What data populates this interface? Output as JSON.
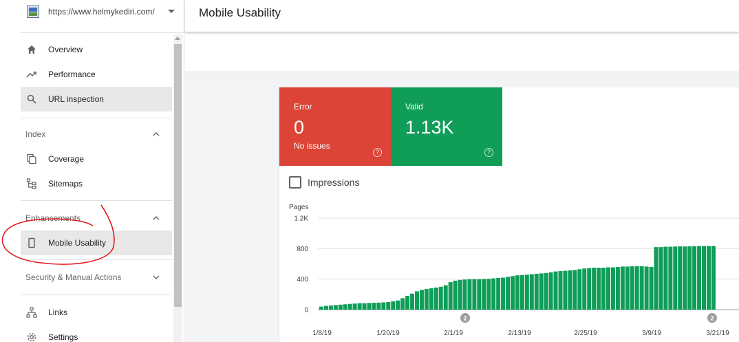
{
  "property": {
    "url": "https://www.helmykediri.com/"
  },
  "nav": {
    "overview": "Overview",
    "performance": "Performance",
    "url_inspection": "URL inspection",
    "index_header": "Index",
    "coverage": "Coverage",
    "sitemaps": "Sitemaps",
    "enhancements_header": "Enhancements",
    "mobile_usability": "Mobile Usability",
    "security_header": "Security & Manual Actions",
    "links": "Links",
    "settings": "Settings"
  },
  "header": {
    "title": "Mobile Usability"
  },
  "summary": {
    "error": {
      "label": "Error",
      "value": "0",
      "sub": "No issues",
      "color": "#db4437"
    },
    "valid": {
      "label": "Valid",
      "value": "1.13K",
      "color": "#0f9d58"
    }
  },
  "impressions_label": "Impressions",
  "chart_data": {
    "type": "bar",
    "ylabel": "Pages",
    "ylim": [
      0,
      1200
    ],
    "y_ticks": [
      {
        "value": 0,
        "label": "0"
      },
      {
        "value": 400,
        "label": "400"
      },
      {
        "value": 800,
        "label": "800"
      },
      {
        "value": 1200,
        "label": "1.2K"
      }
    ],
    "x_tick_labels": [
      "1/8/19",
      "1/20/19",
      "2/1/19",
      "2/13/19",
      "2/25/19",
      "3/9/19",
      "3/21/19"
    ],
    "annotations": [
      {
        "label": "2",
        "near": "2/1/19"
      },
      {
        "label": "2",
        "near": "3/21/19"
      }
    ],
    "bar_color": "#0f9d58",
    "values": [
      40,
      50,
      55,
      60,
      65,
      70,
      75,
      80,
      85,
      85,
      88,
      90,
      92,
      95,
      100,
      110,
      120,
      150,
      180,
      210,
      240,
      260,
      270,
      280,
      290,
      300,
      320,
      360,
      380,
      390,
      395,
      400,
      400,
      400,
      402,
      405,
      410,
      415,
      420,
      430,
      440,
      450,
      455,
      460,
      465,
      470,
      475,
      480,
      490,
      500,
      505,
      510,
      515,
      520,
      530,
      540,
      545,
      550,
      550,
      550,
      555,
      555,
      560,
      565,
      565,
      570,
      570,
      570,
      565,
      560,
      820,
      820,
      825,
      825,
      828,
      830,
      828,
      830,
      832,
      835,
      835,
      835,
      836
    ]
  }
}
